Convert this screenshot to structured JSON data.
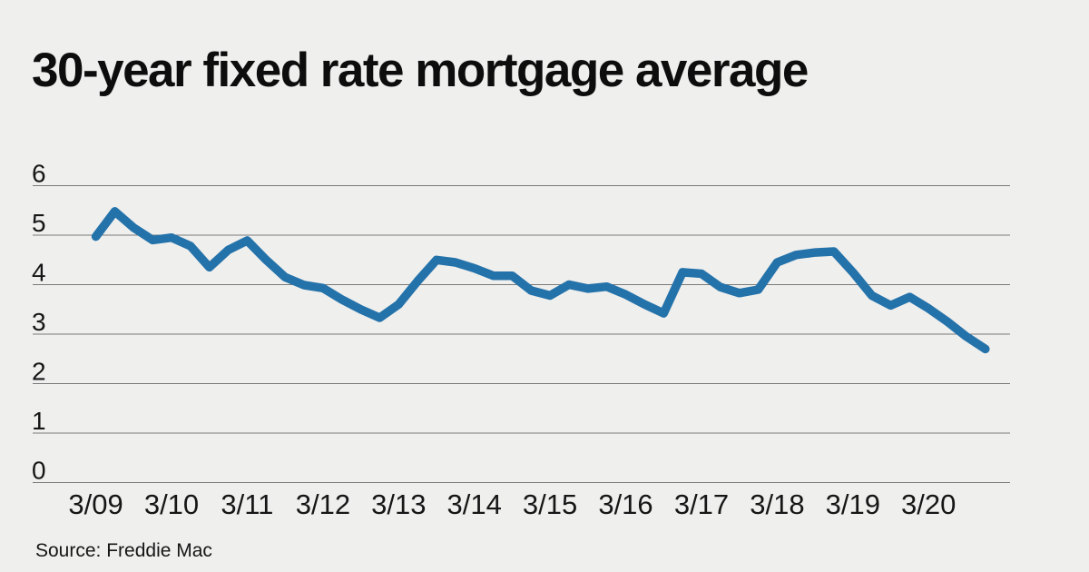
{
  "page": {
    "title": "30-year fixed rate mortgage average",
    "source": "Source: Freddie Mac"
  },
  "colors": {
    "background": "#efefed",
    "line": "#2472aa",
    "grid": "#7a7a7a",
    "text": "#161616",
    "title_text": "#0d0d0d"
  },
  "chart_data": {
    "type": "line",
    "title": "30-year fixed rate mortgage average",
    "source": "Source: Freddie Mac",
    "xlabel": "",
    "ylabel": "",
    "ylim": [
      0,
      6
    ],
    "grid": "horizontal",
    "legend": "none",
    "line_color": "#2472aa",
    "y_tick_labels": [
      0,
      1,
      2,
      3,
      4,
      5,
      6
    ],
    "x_tick_labels": [
      "3/09",
      "3/10",
      "3/11",
      "3/12",
      "3/13",
      "3/14",
      "3/15",
      "3/16",
      "3/17",
      "3/18",
      "3/19",
      "3/20"
    ],
    "series": [
      {
        "name": "30-year fixed rate mortgage average (%)",
        "cadence": "quarterly",
        "start": "3/09",
        "end": "12/20",
        "values": [
          4.97,
          5.48,
          5.15,
          4.9,
          4.95,
          4.78,
          4.35,
          4.7,
          4.89,
          4.5,
          4.15,
          3.99,
          3.93,
          3.7,
          3.5,
          3.33,
          3.6,
          4.07,
          4.5,
          4.45,
          4.33,
          4.18,
          4.18,
          3.88,
          3.78,
          4.0,
          3.92,
          3.96,
          3.8,
          3.6,
          3.42,
          4.25,
          4.22,
          3.95,
          3.83,
          3.9,
          4.45,
          4.6,
          4.65,
          4.67,
          4.25,
          3.78,
          3.58,
          3.75,
          3.52,
          3.25,
          2.95,
          2.7
        ]
      }
    ]
  }
}
